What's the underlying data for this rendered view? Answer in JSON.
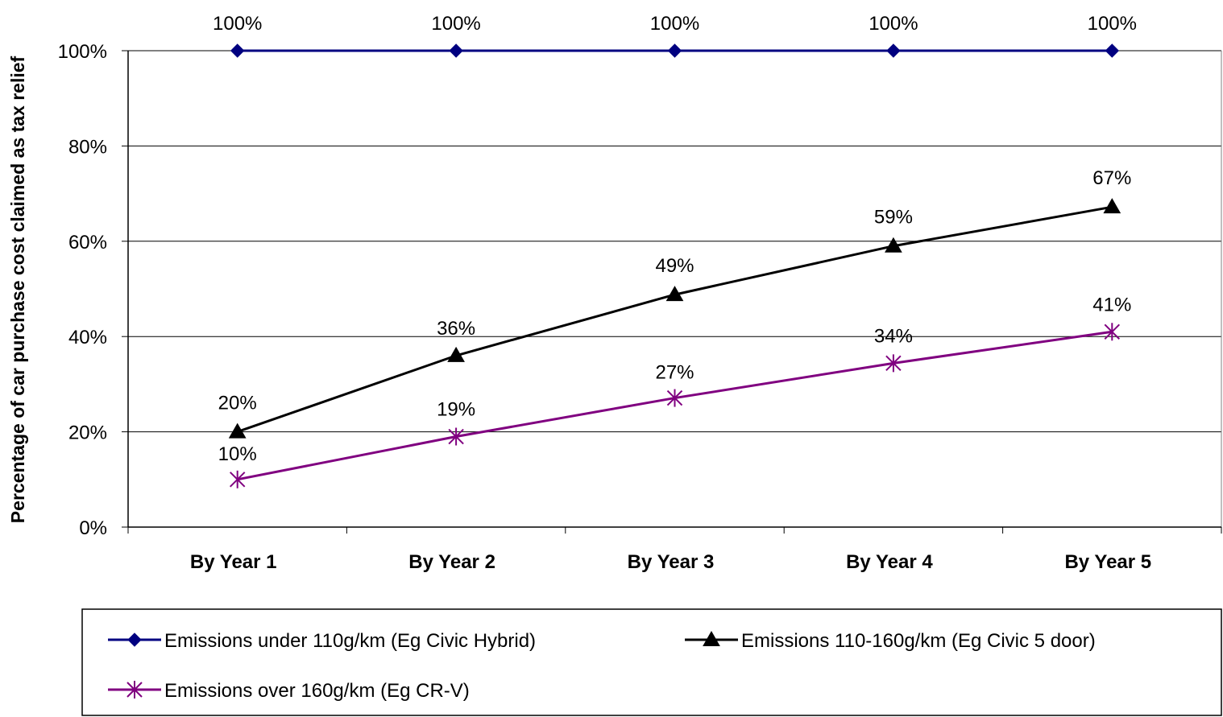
{
  "chart_data": {
    "type": "line",
    "title": "",
    "xlabel": "",
    "ylabel": "Percentage of car purchase cost claimed as tax relief",
    "categories": [
      "By Year 1",
      "By Year 2",
      "By Year 3",
      "By Year 4",
      "By Year 5"
    ],
    "ylim": [
      0,
      100
    ],
    "yticks": [
      "0%",
      "20%",
      "40%",
      "60%",
      "80%",
      "100%"
    ],
    "grid": true,
    "legend_position": "bottom",
    "series": [
      {
        "name": "Emissions under 110g/km (Eg Civic Hybrid)",
        "values": [
          100,
          100,
          100,
          100,
          100
        ],
        "labels": [
          "100%",
          "100%",
          "100%",
          "100%",
          "100%"
        ],
        "color": "#000080",
        "marker": "diamond"
      },
      {
        "name": "Emissions 110-160g/km (Eg Civic 5 door)",
        "values": [
          20,
          36,
          48.8,
          59,
          67.2
        ],
        "labels": [
          "20%",
          "36%",
          "49%",
          "59%",
          "67%"
        ],
        "color": "#000000",
        "marker": "triangle"
      },
      {
        "name": "Emissions over 160g/km (Eg CR-V)",
        "values": [
          10,
          19,
          27.1,
          34.4,
          41
        ],
        "labels": [
          "10%",
          "19%",
          "27%",
          "34%",
          "41%"
        ],
        "color": "#800080",
        "marker": "asterisk"
      }
    ]
  }
}
